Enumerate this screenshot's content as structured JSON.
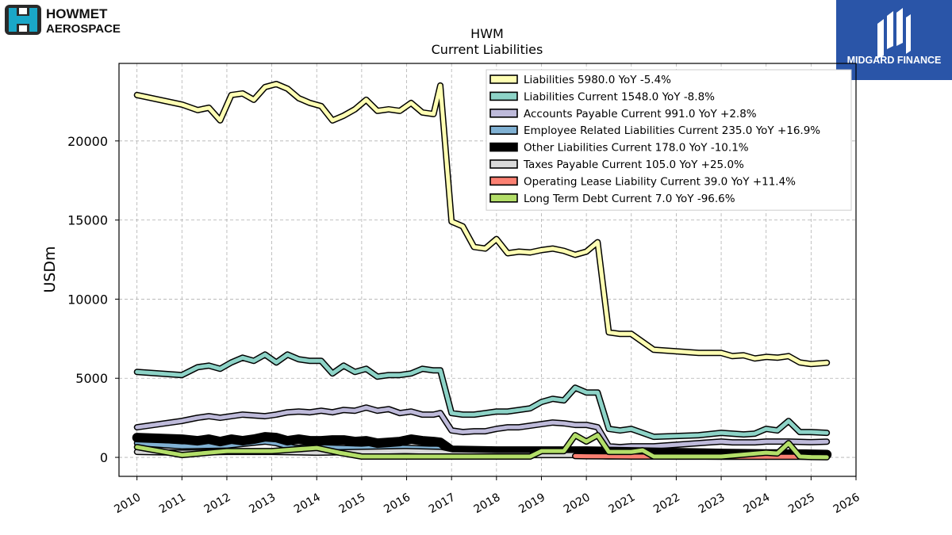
{
  "logos": {
    "left_line1": "HOWMET",
    "left_line2": "AEROSPACE",
    "right_text": "MIDGARD FINANCE"
  },
  "chart_data": {
    "type": "line",
    "title": "HWM",
    "subtitle": "Current  Liabilities",
    "xlabel": "",
    "ylabel": "USDm",
    "xlim": [
      2009.6,
      2026.0
    ],
    "ylim": [
      -1200,
      24900
    ],
    "x_ticks": [
      2010,
      2011,
      2012,
      2013,
      2014,
      2015,
      2016,
      2017,
      2018,
      2019,
      2020,
      2021,
      2022,
      2023,
      2024,
      2025,
      2026
    ],
    "y_ticks": [
      0,
      5000,
      10000,
      15000,
      20000
    ],
    "grid": true,
    "legend_position": "top-right",
    "series": [
      {
        "name": "Liabilities",
        "legend": "Liabilities  5980.0 YoY -5.4%",
        "color": "#ffffb3",
        "width": 5,
        "x": [
          2010.0,
          2011.0,
          2011.35,
          2011.6,
          2011.85,
          2012.1,
          2012.35,
          2012.6,
          2012.85,
          2013.1,
          2013.35,
          2013.6,
          2013.85,
          2014.1,
          2014.35,
          2014.6,
          2014.85,
          2015.1,
          2015.35,
          2015.6,
          2015.85,
          2016.1,
          2016.35,
          2016.6,
          2016.75,
          2017.0,
          2017.25,
          2017.5,
          2017.75,
          2018.0,
          2018.25,
          2018.5,
          2018.75,
          2019.0,
          2019.25,
          2019.5,
          2019.75,
          2020.0,
          2020.25,
          2020.5,
          2020.75,
          2021.0,
          2021.5,
          2022.0,
          2022.5,
          2023.0,
          2023.25,
          2023.5,
          2023.75,
          2024.0,
          2024.25,
          2024.5,
          2024.75,
          2025.0,
          2025.35
        ],
        "y": [
          22900,
          22300,
          21950,
          22100,
          21300,
          22900,
          23000,
          22600,
          23400,
          23600,
          23300,
          22700,
          22400,
          22200,
          21300,
          21600,
          22000,
          22600,
          21900,
          22000,
          21900,
          22400,
          21800,
          21700,
          23500,
          14900,
          14600,
          13300,
          13200,
          13800,
          12900,
          13000,
          12950,
          13100,
          13200,
          13050,
          12800,
          13000,
          13600,
          7900,
          7800,
          7800,
          6800,
          6700,
          6600,
          6600,
          6400,
          6450,
          6250,
          6350,
          6300,
          6400,
          6000,
          5900,
          5980
        ]
      },
      {
        "name": "Liabilities Current",
        "legend": "Liabilities Current  1548.0 YoY -8.8%",
        "color": "#8dd3c7",
        "width": 5,
        "x": [
          2010.0,
          2011.0,
          2011.35,
          2011.6,
          2011.85,
          2012.1,
          2012.35,
          2012.6,
          2012.85,
          2013.1,
          2013.35,
          2013.6,
          2013.85,
          2014.1,
          2014.35,
          2014.6,
          2014.85,
          2015.1,
          2015.35,
          2015.6,
          2015.85,
          2016.1,
          2016.35,
          2016.6,
          2016.75,
          2017.0,
          2017.25,
          2017.5,
          2017.75,
          2018.0,
          2018.25,
          2018.5,
          2018.75,
          2019.0,
          2019.25,
          2019.5,
          2019.75,
          2020.0,
          2020.25,
          2020.5,
          2020.75,
          2021.0,
          2021.5,
          2022.0,
          2022.5,
          2023.0,
          2023.25,
          2023.5,
          2023.75,
          2024.0,
          2024.25,
          2024.5,
          2024.75,
          2025.0,
          2025.35
        ],
        "y": [
          5400,
          5200,
          5700,
          5800,
          5600,
          6000,
          6300,
          6100,
          6500,
          6000,
          6500,
          6200,
          6100,
          6100,
          5300,
          5800,
          5400,
          5600,
          5100,
          5200,
          5200,
          5300,
          5600,
          5500,
          5500,
          2800,
          2700,
          2700,
          2800,
          2900,
          2900,
          3000,
          3100,
          3500,
          3700,
          3600,
          4400,
          4100,
          4100,
          1800,
          1700,
          1800,
          1300,
          1350,
          1400,
          1550,
          1500,
          1450,
          1500,
          1800,
          1700,
          2300,
          1600,
          1600,
          1548
        ]
      },
      {
        "name": "Accounts Payable Current",
        "legend": "Accounts Payable Current  991.0 YoY +2.8%",
        "color": "#bebada",
        "width": 5,
        "x": [
          2010.0,
          2011.0,
          2011.35,
          2011.6,
          2011.85,
          2012.1,
          2012.35,
          2012.6,
          2012.85,
          2013.1,
          2013.35,
          2013.6,
          2013.85,
          2014.1,
          2014.35,
          2014.6,
          2014.85,
          2015.1,
          2015.35,
          2015.6,
          2015.85,
          2016.1,
          2016.35,
          2016.6,
          2016.75,
          2017.0,
          2017.25,
          2017.5,
          2017.75,
          2018.0,
          2018.25,
          2018.5,
          2018.75,
          2019.0,
          2019.25,
          2019.5,
          2019.75,
          2020.0,
          2020.25,
          2020.5,
          2020.75,
          2021.0,
          2021.5,
          2022.0,
          2022.5,
          2023.0,
          2023.25,
          2023.5,
          2023.75,
          2024.0,
          2024.25,
          2024.5,
          2024.75,
          2025.0,
          2025.35
        ],
        "y": [
          1900,
          2300,
          2500,
          2600,
          2500,
          2600,
          2700,
          2650,
          2600,
          2700,
          2850,
          2900,
          2850,
          2950,
          2850,
          3000,
          2950,
          3150,
          2950,
          3050,
          2800,
          2900,
          2700,
          2700,
          2800,
          1700,
          1600,
          1650,
          1650,
          1800,
          1900,
          1900,
          2000,
          2100,
          2200,
          2150,
          2050,
          2050,
          1900,
          700,
          650,
          700,
          700,
          800,
          900,
          1000,
          950,
          950,
          950,
          1000,
          1000,
          1000,
          980,
          960,
          991
        ]
      },
      {
        "name": "Employee Related Liabilities Current",
        "legend": "Employee Related Liabilities Current  235.0 YoY +16.9%",
        "color": "#80b1d3",
        "width": 5,
        "x": [
          2010.0,
          2011.0,
          2012.0,
          2012.85,
          2013.1,
          2013.5,
          2014.0,
          2014.5,
          2015.0,
          2015.5,
          2016.0,
          2016.5,
          2016.75,
          2017.0,
          2018.0,
          2019.0,
          2020.0,
          2020.5,
          2021.0,
          2022.0,
          2023.0,
          2024.0,
          2025.0,
          2025.35
        ],
        "y": [
          900,
          700,
          750,
          1000,
          900,
          600,
          650,
          600,
          550,
          650,
          600,
          550,
          550,
          300,
          300,
          300,
          300,
          220,
          220,
          230,
          220,
          220,
          230,
          235
        ]
      },
      {
        "name": "Other Liabilities Current",
        "legend": "Other Liabilities Current  178.0 YoY -10.1%",
        "color": "#000000",
        "width": 9,
        "x": [
          2010.0,
          2011.0,
          2011.35,
          2011.6,
          2011.85,
          2012.1,
          2012.35,
          2012.6,
          2012.85,
          2013.1,
          2013.35,
          2013.6,
          2013.85,
          2014.1,
          2014.35,
          2014.6,
          2014.85,
          2015.1,
          2015.35,
          2015.6,
          2015.85,
          2016.1,
          2016.35,
          2016.6,
          2016.75,
          2017.0,
          2018.0,
          2019.0,
          2020.0,
          2021.0,
          2022.0,
          2023.0,
          2024.0,
          2025.0,
          2025.35
        ],
        "y": [
          1250,
          1150,
          1050,
          1150,
          1000,
          1150,
          1050,
          1150,
          1300,
          1250,
          1050,
          1150,
          1050,
          1050,
          1100,
          1100,
          1000,
          1050,
          900,
          950,
          1000,
          1150,
          1050,
          1000,
          950,
          450,
          400,
          400,
          400,
          350,
          300,
          250,
          220,
          200,
          178
        ]
      },
      {
        "name": "Taxes Payable Current",
        "legend": "Taxes Payable Current  105.0 YoY +25.0%",
        "color": "#d9d9d9",
        "width": 5,
        "x": [
          2010.0,
          2011.0,
          2012.0,
          2013.0,
          2014.0,
          2015.0,
          2016.0,
          2016.75,
          2017.0,
          2018.0,
          2019.0,
          2019.75,
          2020.0,
          2020.5,
          2021.0,
          2022.0,
          2023.0,
          2024.0,
          2024.5,
          2025.0,
          2025.35
        ],
        "y": [
          350,
          300,
          350,
          350,
          300,
          350,
          400,
          350,
          200,
          150,
          150,
          150,
          120,
          60,
          80,
          70,
          80,
          80,
          90,
          90,
          105
        ]
      },
      {
        "name": "Operating Lease Liability Current",
        "legend": "Operating Lease Liability Current  39.0 YoY +11.4%",
        "color": "#fb8072",
        "width": 5,
        "x": [
          2019.75,
          2020.0,
          2020.5,
          2021.0,
          2021.5,
          2022.0,
          2023.0,
          2024.0,
          2024.5,
          2024.75,
          2025.0,
          2025.35
        ],
        "y": [
          80,
          70,
          60,
          50,
          50,
          45,
          40,
          35,
          35,
          38,
          36,
          39
        ]
      },
      {
        "name": "Long Term Debt Current",
        "legend": "Long Term Debt Current  7.0 YoY -96.6%",
        "color": "#b3de69",
        "width": 5,
        "x": [
          2010.0,
          2011.0,
          2012.0,
          2013.0,
          2014.0,
          2014.5,
          2015.0,
          2016.0,
          2017.0,
          2018.0,
          2018.75,
          2019.0,
          2019.5,
          2019.75,
          2020.0,
          2020.25,
          2020.5,
          2021.0,
          2021.25,
          2021.5,
          2022.0,
          2023.0,
          2024.0,
          2024.25,
          2024.5,
          2024.75,
          2025.0,
          2025.35
        ],
        "y": [
          650,
          150,
          400,
          400,
          600,
          300,
          50,
          50,
          50,
          50,
          50,
          400,
          400,
          1400,
          1000,
          1400,
          350,
          350,
          450,
          50,
          50,
          50,
          300,
          250,
          900,
          50,
          20,
          7
        ]
      }
    ]
  }
}
